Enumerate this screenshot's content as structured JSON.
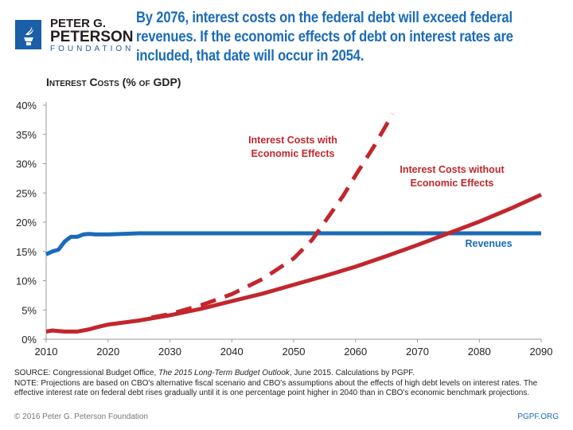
{
  "logo": {
    "line1": "PETER G.",
    "line2": "PETERSON",
    "line3": "FOUNDATION"
  },
  "headline": "By 2076, interest costs on the federal debt will exceed federal revenues. If the economic effects of debt on interest rates are included, that date will occur in 2054.",
  "source": {
    "prefix": "SOURCE: Congressional Budget Office, ",
    "title": "The 2015 Long-Term Budget Outlook",
    "suffix": ", June 2015. Calculations by PGPF.",
    "note": "NOTE: Projections are based on CBO's alternative fiscal scenario and CBO's assumptions about the effects of high debt levels on interest rates. The effective interest rate on federal debt rises gradually until it is one percentage point higher in 2040 than in CBO's economic benchmark projections."
  },
  "footer": {
    "copyright": "© 2016 Peter G. Peterson Foundation",
    "url": "PGPF.ORG"
  },
  "chart_data": {
    "type": "line",
    "ylabel": "Interest Costs (% of GDP)",
    "xlim": [
      2010,
      2090
    ],
    "ylim": [
      0,
      40
    ],
    "xticks": [
      "2010",
      "2020",
      "2030",
      "2040",
      "2050",
      "2060",
      "2070",
      "2080",
      "2090"
    ],
    "yticks": [
      "0%",
      "5%",
      "10%",
      "15%",
      "20%",
      "25%",
      "30%",
      "35%",
      "40%"
    ],
    "grid": false,
    "series": [
      {
        "name": "Revenues",
        "color": "#1a6bb8",
        "style": "solid",
        "x": [
          2010,
          2011,
          2012,
          2013,
          2014,
          2015,
          2016,
          2017,
          2018,
          2020,
          2025,
          2090
        ],
        "y": [
          14.5,
          15,
          15.3,
          16.7,
          17.5,
          17.5,
          17.9,
          18.0,
          17.9,
          17.9,
          18.1,
          18.1
        ]
      },
      {
        "name": "Interest Costs without Economic Effects",
        "color": "#c1272d",
        "style": "solid",
        "x": [
          2010,
          2011,
          2012,
          2013,
          2015,
          2017,
          2018,
          2020,
          2025,
          2030,
          2035,
          2040,
          2045,
          2050,
          2055,
          2060,
          2065,
          2070,
          2075,
          2080,
          2085,
          2090
        ],
        "y": [
          1.3,
          1.5,
          1.4,
          1.3,
          1.3,
          1.7,
          2.0,
          2.5,
          3.2,
          4.1,
          5.2,
          6.5,
          7.8,
          9.3,
          10.8,
          12.4,
          14.2,
          16.1,
          18.1,
          20.1,
          22.3,
          24.7
        ]
      },
      {
        "name": "Interest Costs with Economic Effects",
        "color": "#c1272d",
        "style": "dashed",
        "x": [
          2027,
          2030,
          2035,
          2040,
          2045,
          2050,
          2053,
          2055,
          2058,
          2060,
          2063,
          2066
        ],
        "y": [
          3.7,
          4.3,
          5.8,
          7.7,
          10.3,
          13.8,
          17,
          20,
          24.5,
          28,
          33,
          38.5
        ]
      }
    ],
    "labels": [
      "Interest Costs with Economic Effects",
      "Interest Costs without Economic Effects",
      "Revenues"
    ]
  }
}
